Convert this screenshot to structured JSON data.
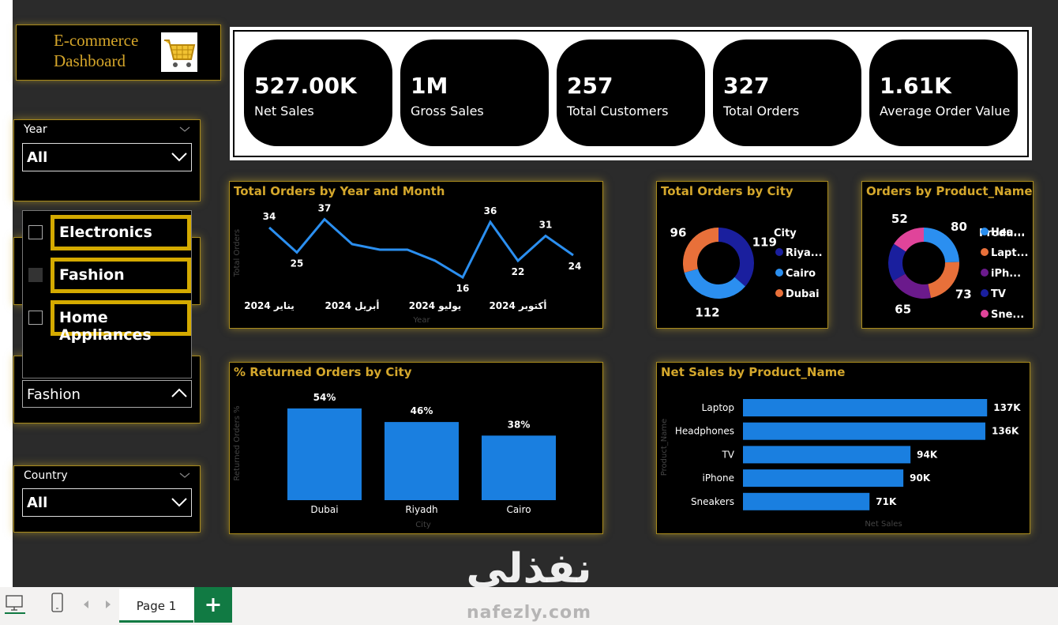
{
  "header": {
    "title": "E-commerce Dashboard"
  },
  "kpis": [
    {
      "value": "527.00K",
      "label": "Net Sales"
    },
    {
      "value": "1M",
      "label": "Gross Sales"
    },
    {
      "value": 257,
      "label": "Total Customers"
    },
    {
      "value": 327,
      "label": "Total Orders"
    },
    {
      "value": "1.61K",
      "label": "Average Order Value"
    }
  ],
  "slicers": {
    "year": {
      "label": "Year",
      "selected": "All"
    },
    "category": {
      "options": [
        "Electronics",
        "Fashion",
        "Home Appliances"
      ],
      "selected": "Fashion"
    },
    "country": {
      "label": "Country",
      "selected": "All"
    }
  },
  "charts": [
    {
      "type": "line",
      "title": "Total Orders by Year and Month",
      "y_label": "Total Orders",
      "x_label": "Year",
      "categories": [
        "يناير 2024",
        null,
        null,
        "أبريل 2024",
        null,
        null,
        "يوليو 2024",
        null,
        null,
        "أكتوبر 2024",
        null,
        null
      ],
      "values": [
        34,
        25,
        37,
        28,
        26,
        26,
        22,
        16,
        36,
        22,
        31,
        24
      ],
      "value_labels": [
        "34",
        "25",
        "37",
        null,
        null,
        null,
        null,
        "16",
        "36",
        "22",
        "31",
        "24"
      ],
      "color": "#2b8ff0",
      "ylim": [
        10,
        40
      ]
    },
    {
      "type": "donut",
      "title": "Total Orders by City",
      "legend_title": "City",
      "categories": [
        "Riya...",
        "Cairo",
        "Dubai"
      ],
      "values": [
        119,
        112,
        96
      ],
      "colors": [
        "#1a1f9e",
        "#2b8ff0",
        "#e8703a"
      ]
    },
    {
      "type": "donut",
      "title": "Orders by Product_Name",
      "legend_title": "Produ...",
      "categories": [
        "Hea...",
        "Lapt...",
        "iPh...",
        "TV",
        "Sne..."
      ],
      "values": [
        80,
        73,
        65,
        57,
        52
      ],
      "value_labels": [
        "80",
        "73",
        "65",
        null,
        "52"
      ],
      "colors": [
        "#2b8ff0",
        "#e8703a",
        "#6b1a8c",
        "#1a1f9e",
        "#e0449a"
      ]
    },
    {
      "type": "bar",
      "title": "% Returned Orders by City",
      "y_label": "Returned Orders %",
      "x_label": "City",
      "categories": [
        "Dubai",
        "Riyadh",
        "Cairo"
      ],
      "values": [
        54,
        46,
        38
      ],
      "value_labels": [
        "54%",
        "46%",
        "38%"
      ],
      "color": "#1a7fe0",
      "ylim": [
        0,
        60
      ]
    },
    {
      "type": "hbar",
      "title": "Net Sales by Product_Name",
      "y_label": "Product_Name",
      "x_label": "Net Sales",
      "categories": [
        "Laptop",
        "Headphones",
        "TV",
        "iPhone",
        "Sneakers"
      ],
      "values": [
        137000,
        136000,
        94000,
        90000,
        71000
      ],
      "value_labels": [
        "137K",
        "136K",
        "94K",
        "90K",
        "71K"
      ],
      "color": "#1a7fe0",
      "xlim": [
        0,
        140000
      ]
    }
  ],
  "footer": {
    "tab": "Page 1"
  },
  "watermark": {
    "arabic": "نفذلي",
    "latin": "nafezly.com"
  }
}
